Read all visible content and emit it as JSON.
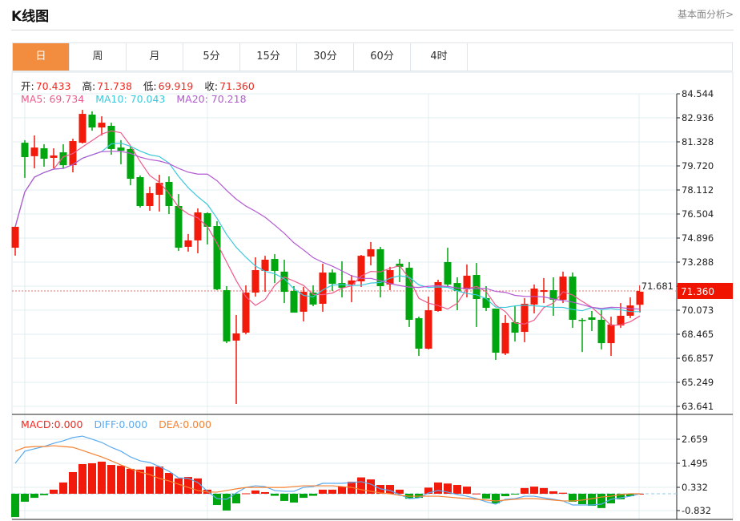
{
  "header": {
    "title": "K线图",
    "link": "基本面分析>"
  },
  "tabs": [
    "日",
    "周",
    "月",
    "5分",
    "15分",
    "30分",
    "60分",
    "4时"
  ],
  "active_tab": 0,
  "ohlc": {
    "open_label": "开:",
    "open": "70.433",
    "high_label": "高:",
    "high": "71.738",
    "low_label": "低:",
    "low": "69.919",
    "close_label": "收:",
    "close": "71.360"
  },
  "ma": {
    "ma5": "MA5: 69.734",
    "ma10": "MA10: 70.043",
    "ma20": "MA20: 70.218"
  },
  "macd_legend": {
    "macd": "MACD:0.000",
    "diff": "DIFF:0.000",
    "dea": "DEA:0.000"
  },
  "last_price": "71.360",
  "colors": {
    "up": "#f21a0a",
    "down": "#00a60f",
    "ma5": "#ee5a8a",
    "ma10": "#3cc8dc",
    "ma20": "#b45ad2",
    "diff": "#5aaaf0",
    "dea": "#f58232",
    "tab_active": "#f28c3e"
  },
  "chart_data": {
    "type": "candlestick",
    "price_axis": {
      "ticks": [
        "84.544",
        "82.936",
        "81.328",
        "79.720",
        "78.112",
        "76.504",
        "74.896",
        "73.288",
        "71.681",
        "70.073",
        "68.465",
        "66.857",
        "65.249",
        "63.641"
      ],
      "range": [
        63.641,
        84.544
      ]
    },
    "macd_axis": {
      "ticks": [
        "2.659",
        "1.495",
        "0.332",
        "-0.832"
      ]
    },
    "candles": [
      [
        74.25,
        75.65,
        73.72,
        75.65
      ],
      [
        81.27,
        81.44,
        78.92,
        80.31
      ],
      [
        80.37,
        81.76,
        79.56,
        80.95
      ],
      [
        80.9,
        81.17,
        79.67,
        80.2
      ],
      [
        80.26,
        80.9,
        79.56,
        80.42
      ],
      [
        80.63,
        81.17,
        79.56,
        79.77
      ],
      [
        79.77,
        81.54,
        79.29,
        81.38
      ],
      [
        81.27,
        83.47,
        81.22,
        83.2
      ],
      [
        83.15,
        83.37,
        82.08,
        82.29
      ],
      [
        82.29,
        83.04,
        81.76,
        82.61
      ],
      [
        82.4,
        82.61,
        80.47,
        80.85
      ],
      [
        80.95,
        81.44,
        79.83,
        80.74
      ],
      [
        80.85,
        81.06,
        78.43,
        78.86
      ],
      [
        78.97,
        79.08,
        76.93,
        77.04
      ],
      [
        77.04,
        78.33,
        76.72,
        77.9
      ],
      [
        77.79,
        79.13,
        76.67,
        78.59
      ],
      [
        78.65,
        79.02,
        76.5,
        77.04
      ],
      [
        77.04,
        77.84,
        74.04,
        74.25
      ],
      [
        74.31,
        75.17,
        73.99,
        74.74
      ],
      [
        74.74,
        76.88,
        73.88,
        76.61
      ],
      [
        76.56,
        76.61,
        74.47,
        75.65
      ],
      [
        75.7,
        76.02,
        71.41,
        71.47
      ],
      [
        71.41,
        71.68,
        67.87,
        67.98
      ],
      [
        68.04,
        69.75,
        63.8,
        68.52
      ],
      [
        68.57,
        71.73,
        68.46,
        71.25
      ],
      [
        71.25,
        73.61,
        70.98,
        72.75
      ],
      [
        72.7,
        73.71,
        71.3,
        73.45
      ],
      [
        73.5,
        73.82,
        71.89,
        72.7
      ],
      [
        72.65,
        73.45,
        70.55,
        71.3
      ],
      [
        71.36,
        71.68,
        69.91,
        69.91
      ],
      [
        69.97,
        71.63,
        69.32,
        71.3
      ],
      [
        71.25,
        71.73,
        70.34,
        70.45
      ],
      [
        70.5,
        73.18,
        69.97,
        72.59
      ],
      [
        72.59,
        72.8,
        71.36,
        71.84
      ],
      [
        71.89,
        73.34,
        70.93,
        71.57
      ],
      [
        71.79,
        72.43,
        70.61,
        72.06
      ],
      [
        72.0,
        73.77,
        71.63,
        73.71
      ],
      [
        73.66,
        74.63,
        73.07,
        74.15
      ],
      [
        74.15,
        74.31,
        70.93,
        71.68
      ],
      [
        71.79,
        72.97,
        71.41,
        72.75
      ],
      [
        73.18,
        73.5,
        71.95,
        72.97
      ],
      [
        72.91,
        73.29,
        68.95,
        69.43
      ],
      [
        69.54,
        69.64,
        67.02,
        67.5
      ],
      [
        67.5,
        70.98,
        67.45,
        70.07
      ],
      [
        70.02,
        72.11,
        69.97,
        71.95
      ],
      [
        73.29,
        74.25,
        71.68,
        71.79
      ],
      [
        71.89,
        72.27,
        70.07,
        71.36
      ],
      [
        71.47,
        73.13,
        70.93,
        72.38
      ],
      [
        72.43,
        73.23,
        68.95,
        70.82
      ],
      [
        70.88,
        71.68,
        70.02,
        70.23
      ],
      [
        70.18,
        70.18,
        66.75,
        67.23
      ],
      [
        67.18,
        69.75,
        67.07,
        69.22
      ],
      [
        69.27,
        70.34,
        67.98,
        68.57
      ],
      [
        68.62,
        70.88,
        67.93,
        70.5
      ],
      [
        70.45,
        71.79,
        69.86,
        71.52
      ],
      [
        71.3,
        72.22,
        70.55,
        71.41
      ],
      [
        71.41,
        72.27,
        69.7,
        70.77
      ],
      [
        70.77,
        72.65,
        70.55,
        72.32
      ],
      [
        72.32,
        72.59,
        68.89,
        69.43
      ],
      [
        69.43,
        69.54,
        67.28,
        69.38
      ],
      [
        69.59,
        70.02,
        68.68,
        69.43
      ],
      [
        69.43,
        70.07,
        67.45,
        67.87
      ],
      [
        67.87,
        69.64,
        67.02,
        69.11
      ],
      [
        69.05,
        70.55,
        68.89,
        69.7
      ],
      [
        69.7,
        70.93,
        69.54,
        70.39
      ],
      [
        70.433,
        71.738,
        69.919,
        71.36
      ]
    ],
    "macd": [
      -1.14,
      -0.39,
      -0.2,
      -0.07,
      0.2,
      0.55,
      1.06,
      1.45,
      1.49,
      1.57,
      1.41,
      1.37,
      1.22,
      1.18,
      1.33,
      1.33,
      1.02,
      0.75,
      0.82,
      0.75,
      0.2,
      -0.55,
      -0.82,
      -0.47,
      0.02,
      0.16,
      0.08,
      -0.1,
      -0.35,
      -0.43,
      -0.2,
      -0.1,
      0.2,
      0.2,
      0.35,
      0.59,
      0.8,
      0.7,
      0.43,
      0.43,
      0.2,
      -0.24,
      -0.2,
      0.3,
      0.55,
      0.5,
      0.43,
      0.35,
      0.01,
      -0.24,
      -0.47,
      -0.12,
      -0.02,
      0.28,
      0.35,
      0.28,
      0.12,
      0.05,
      -0.39,
      -0.51,
      -0.59,
      -0.7,
      -0.47,
      -0.27,
      -0.12,
      0.0
    ],
    "diff": [
      1.49,
      2.08,
      2.2,
      2.31,
      2.47,
      2.59,
      2.75,
      2.82,
      2.67,
      2.51,
      2.27,
      2.08,
      1.8,
      1.61,
      1.53,
      1.33,
      1.1,
      0.78,
      0.75,
      0.55,
      0.12,
      -0.24,
      -0.27,
      0.04,
      0.31,
      0.39,
      0.35,
      0.16,
      0.12,
      0.12,
      0.31,
      0.35,
      0.51,
      0.51,
      0.51,
      0.55,
      0.59,
      0.47,
      0.24,
      0.16,
      -0.04,
      -0.24,
      -0.2,
      0.04,
      0.16,
      0.08,
      -0.04,
      -0.12,
      -0.24,
      -0.39,
      -0.51,
      -0.27,
      -0.24,
      -0.12,
      -0.12,
      -0.2,
      -0.27,
      -0.35,
      -0.55,
      -0.55,
      -0.55,
      -0.51,
      -0.27,
      -0.2,
      -0.12,
      0.0
    ],
    "dea": [
      2.08,
      2.27,
      2.31,
      2.31,
      2.35,
      2.31,
      2.27,
      2.12,
      1.96,
      1.8,
      1.61,
      1.41,
      1.22,
      1.06,
      0.94,
      0.75,
      0.63,
      0.47,
      0.31,
      0.16,
      0.08,
      0.08,
      0.16,
      0.24,
      0.31,
      0.31,
      0.31,
      0.31,
      0.31,
      0.35,
      0.39,
      0.39,
      0.39,
      0.39,
      0.35,
      0.31,
      0.2,
      0.12,
      0.04,
      0.0,
      -0.08,
      -0.12,
      -0.12,
      -0.12,
      -0.12,
      -0.16,
      -0.2,
      -0.24,
      -0.27,
      -0.31,
      -0.35,
      -0.31,
      -0.27,
      -0.24,
      -0.24,
      -0.27,
      -0.31,
      -0.35,
      -0.35,
      -0.31,
      -0.24,
      -0.16,
      -0.12,
      -0.04,
      0.0,
      0.0
    ]
  }
}
